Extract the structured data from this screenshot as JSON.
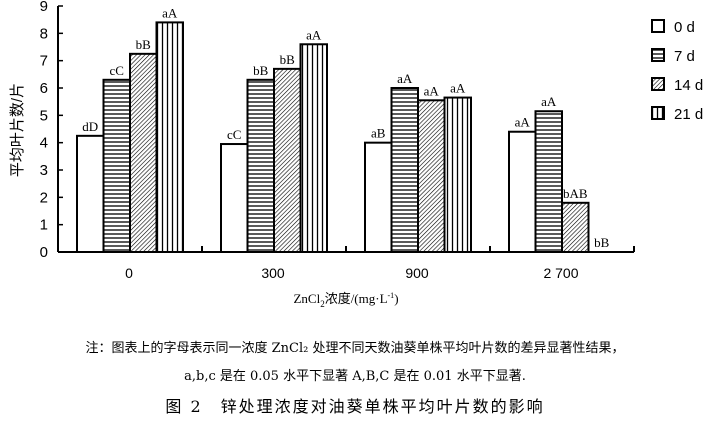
{
  "chart_data": {
    "type": "bar",
    "title": "",
    "xlabel": "ZnCl2浓度/(mg·L-1)",
    "xlabel_parts": {
      "main": "ZnCl",
      "sub": "2",
      "rest": "浓度/(mg·L",
      "sup": "-1",
      "close": ")"
    },
    "ylabel": "平均叶片数/片",
    "ylim": [
      0,
      9
    ],
    "yticks": [
      "0",
      "1",
      "2",
      "3",
      "4",
      "5",
      "6",
      "7",
      "8",
      "9"
    ],
    "categories": [
      "0",
      "300",
      "900",
      "2 700"
    ],
    "legend_position": "top-right",
    "series": [
      {
        "name": "0 d",
        "pattern": "blank",
        "values": [
          4.25,
          3.95,
          4.0,
          4.4
        ],
        "labels": [
          "dD",
          "cC",
          "aB",
          "aA"
        ]
      },
      {
        "name": "7 d",
        "pattern": "horizontal",
        "values": [
          6.3,
          6.3,
          6.0,
          5.15
        ],
        "labels": [
          "cC",
          "bB",
          "aA",
          "aA"
        ]
      },
      {
        "name": "14 d",
        "pattern": "diagonal",
        "values": [
          7.25,
          6.7,
          5.55,
          1.8
        ],
        "labels": [
          "bB",
          "bB",
          "aA",
          "bAB"
        ]
      },
      {
        "name": "21 d",
        "pattern": "vertical",
        "values": [
          8.4,
          7.6,
          5.65,
          0
        ],
        "labels": [
          "aA",
          "aA",
          "aA",
          "bB"
        ]
      }
    ]
  },
  "note": {
    "line1": "注：图表上的字母表示同一浓度 ZnCl₂ 处理不同天数油葵单株平均叶片数的差异显著性结果，",
    "line2": "a,b,c 是在 0.05 水平下显著 A,B,C 是在 0.01 水平下显著."
  },
  "caption": "图 2　锌处理浓度对油葵单株平均叶片数的影响"
}
